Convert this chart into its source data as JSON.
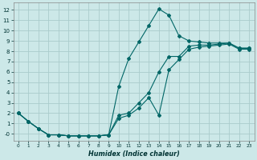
{
  "xlabel": "Humidex (Indice chaleur)",
  "bg_color": "#cce8e8",
  "grid_color": "#aacccc",
  "line_color": "#006666",
  "xlim": [
    -0.5,
    23.5
  ],
  "ylim": [
    -0.7,
    12.7
  ],
  "xticks": [
    0,
    1,
    2,
    3,
    4,
    5,
    6,
    7,
    8,
    9,
    10,
    11,
    12,
    13,
    14,
    15,
    16,
    17,
    18,
    19,
    20,
    21,
    22,
    23
  ],
  "yticks": [
    0,
    1,
    2,
    3,
    4,
    5,
    6,
    7,
    8,
    9,
    10,
    11,
    12
  ],
  "ytick_labels": [
    "-0",
    "1",
    "2",
    "3",
    "4",
    "5",
    "6",
    "7",
    "8",
    "9",
    "10",
    "11",
    "12"
  ],
  "line1_x": [
    0,
    1,
    2,
    3,
    4,
    5,
    6,
    7,
    8,
    9,
    10,
    11,
    12,
    13,
    14,
    15,
    16,
    17,
    18,
    19,
    20,
    21,
    22,
    23
  ],
  "line1_y": [
    2.0,
    1.2,
    0.5,
    -0.1,
    -0.1,
    -0.2,
    -0.2,
    -0.2,
    -0.2,
    -0.1,
    4.6,
    7.3,
    8.9,
    10.5,
    12.1,
    11.5,
    9.5,
    9.0,
    8.9,
    8.8,
    8.8,
    8.8,
    8.3,
    8.3
  ],
  "line2_x": [
    0,
    1,
    2,
    3,
    4,
    5,
    6,
    7,
    8,
    9,
    10,
    11,
    12,
    13,
    14,
    15,
    16,
    17,
    18,
    19,
    20,
    21,
    22,
    23
  ],
  "line2_y": [
    2.0,
    1.2,
    0.5,
    -0.1,
    -0.1,
    -0.2,
    -0.2,
    -0.2,
    -0.2,
    -0.1,
    1.8,
    2.0,
    3.0,
    4.0,
    6.0,
    7.5,
    7.5,
    8.5,
    8.6,
    8.6,
    8.7,
    8.8,
    8.3,
    8.3
  ],
  "line3_x": [
    0,
    1,
    2,
    3,
    4,
    5,
    6,
    7,
    8,
    9,
    10,
    11,
    12,
    13,
    14,
    15,
    16,
    17,
    18,
    19,
    20,
    21,
    22,
    23
  ],
  "line3_y": [
    2.0,
    1.2,
    0.5,
    -0.1,
    -0.1,
    -0.2,
    -0.2,
    -0.2,
    -0.2,
    -0.1,
    1.5,
    1.8,
    2.5,
    3.5,
    1.8,
    6.2,
    7.2,
    8.2,
    8.4,
    8.5,
    8.6,
    8.7,
    8.2,
    8.2
  ]
}
